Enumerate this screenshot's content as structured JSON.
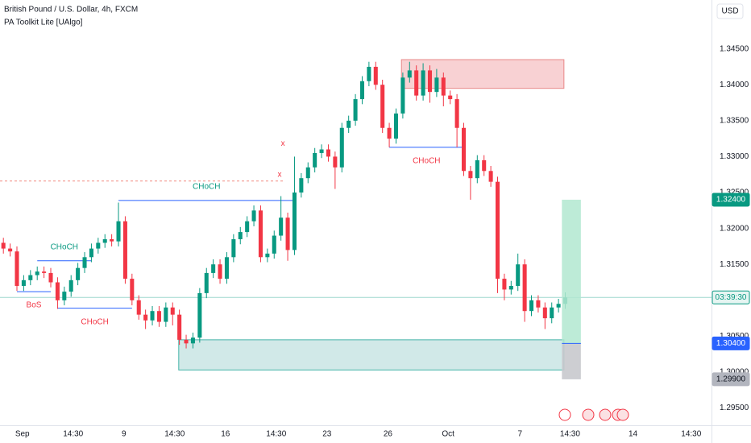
{
  "chart_data": {
    "type": "candlestick",
    "title": "British Pound / U.S. Dollar, 4h, FXCM",
    "indicator": "PA Toolkit Lite [UAlgo]",
    "currency": "USD",
    "up_color": "#089981",
    "down_color": "#f23645",
    "grid": false,
    "ylim": [
      1.2926,
      1.3518
    ],
    "yticks": [
      {
        "value": 1.295,
        "label": "1.29500"
      },
      {
        "value": 1.3,
        "label": "1.30000"
      },
      {
        "value": 1.305,
        "label": "1.30500"
      },
      {
        "value": 1.31,
        "label": "1.31000"
      },
      {
        "value": 1.315,
        "label": "1.31500"
      },
      {
        "value": 1.32,
        "label": "1.32000"
      },
      {
        "value": 1.325,
        "label": "1.32500"
      },
      {
        "value": 1.33,
        "label": "1.33000"
      },
      {
        "value": 1.335,
        "label": "1.33500"
      },
      {
        "value": 1.34,
        "label": "1.34000"
      },
      {
        "value": 1.345,
        "label": "1.34500"
      }
    ],
    "xlim": [
      -0.5,
      104.6
    ],
    "xticks": [
      {
        "value": 2.8,
        "label": "Sep"
      },
      {
        "value": 10.3,
        "label": "14:30"
      },
      {
        "value": 17.8,
        "label": "9"
      },
      {
        "value": 25.3,
        "label": "14:30"
      },
      {
        "value": 32.8,
        "label": "16"
      },
      {
        "value": 40.3,
        "label": "14:30"
      },
      {
        "value": 47.8,
        "label": "23"
      },
      {
        "value": 56.8,
        "label": "26"
      },
      {
        "value": 65.7,
        "label": "Oct"
      },
      {
        "value": 76.3,
        "label": "7"
      },
      {
        "value": 83.7,
        "label": "14:30"
      },
      {
        "value": 93,
        "label": "14"
      },
      {
        "value": 101.6,
        "label": "14:30"
      }
    ],
    "candles": {
      "open": [
        1.318,
        1.3172,
        1.3168,
        1.312,
        1.3128,
        1.3135,
        1.314,
        1.3138,
        1.3125,
        1.31,
        1.3112,
        1.3128,
        1.3145,
        1.316,
        1.3172,
        1.318,
        1.3185,
        1.3182,
        1.321,
        1.313,
        1.31,
        1.308,
        1.3072,
        1.3085,
        1.307,
        1.309,
        1.308,
        1.3045,
        1.304,
        1.3048,
        1.311,
        1.3138,
        1.315,
        1.313,
        1.316,
        1.3185,
        1.3195,
        1.321,
        1.3225,
        1.316,
        1.3165,
        1.319,
        1.3215,
        1.317,
        1.325,
        1.327,
        1.3285,
        1.3305,
        1.331,
        1.33,
        1.3285,
        1.334,
        1.335,
        1.338,
        1.3405,
        1.3425,
        1.34,
        1.334,
        1.3325,
        1.336,
        1.341,
        1.342,
        1.3385,
        1.342,
        1.339,
        1.341,
        1.3385,
        1.338,
        1.334,
        1.328,
        1.327,
        1.3295,
        1.328,
        1.3265,
        1.313,
        1.3115,
        1.312,
        1.315,
        1.3085,
        1.31,
        1.309,
        1.3075,
        1.309,
        1.3095
      ],
      "high": [
        1.3187,
        1.3179,
        1.3175,
        1.3135,
        1.3142,
        1.3147,
        1.3147,
        1.3145,
        1.3132,
        1.3119,
        1.3135,
        1.3152,
        1.3167,
        1.3179,
        1.3187,
        1.3192,
        1.3192,
        1.3236,
        1.3217,
        1.3137,
        1.3107,
        1.3087,
        1.3092,
        1.3092,
        1.3097,
        1.3097,
        1.3087,
        1.3052,
        1.3055,
        1.3117,
        1.3145,
        1.3157,
        1.3157,
        1.3167,
        1.3192,
        1.3202,
        1.3217,
        1.3232,
        1.3232,
        1.3172,
        1.3197,
        1.3245,
        1.3222,
        1.33,
        1.3277,
        1.3292,
        1.3312,
        1.3317,
        1.3317,
        1.3307,
        1.3347,
        1.3357,
        1.3387,
        1.3412,
        1.3432,
        1.3432,
        1.3407,
        1.3347,
        1.3367,
        1.3417,
        1.3432,
        1.3427,
        1.343,
        1.3427,
        1.3422,
        1.3417,
        1.3392,
        1.3387,
        1.3347,
        1.3287,
        1.3302,
        1.3302,
        1.3287,
        1.3272,
        1.3137,
        1.3127,
        1.3165,
        1.3157,
        1.3107,
        1.3107,
        1.3097,
        1.3097,
        1.3102,
        1.3111
      ],
      "low": [
        1.3165,
        1.3161,
        1.3113,
        1.3113,
        1.3121,
        1.3128,
        1.3131,
        1.3118,
        1.3088,
        1.3093,
        1.3105,
        1.3121,
        1.3138,
        1.3153,
        1.3165,
        1.3173,
        1.3175,
        1.3175,
        1.3123,
        1.3093,
        1.3073,
        1.306,
        1.3065,
        1.3063,
        1.3063,
        1.3065,
        1.3038,
        1.3033,
        1.3033,
        1.3041,
        1.3103,
        1.3131,
        1.3123,
        1.3123,
        1.3153,
        1.3178,
        1.3188,
        1.3203,
        1.3153,
        1.3153,
        1.3158,
        1.3183,
        1.3155,
        1.3163,
        1.3243,
        1.3263,
        1.3278,
        1.3298,
        1.3293,
        1.3255,
        1.3278,
        1.3333,
        1.3343,
        1.3373,
        1.3398,
        1.3393,
        1.3333,
        1.3313,
        1.3318,
        1.3353,
        1.3403,
        1.3378,
        1.3378,
        1.3375,
        1.3383,
        1.337,
        1.3373,
        1.3313,
        1.3273,
        1.324,
        1.3263,
        1.3273,
        1.3258,
        1.311,
        1.31,
        1.3108,
        1.3113,
        1.307,
        1.3078,
        1.3083,
        1.306,
        1.3068,
        1.3083,
        1.3088
      ],
      "close": [
        1.3172,
        1.3168,
        1.312,
        1.3128,
        1.3135,
        1.314,
        1.3138,
        1.3125,
        1.31,
        1.3112,
        1.3128,
        1.3145,
        1.316,
        1.3172,
        1.318,
        1.3185,
        1.3182,
        1.321,
        1.313,
        1.31,
        1.308,
        1.3072,
        1.3085,
        1.307,
        1.309,
        1.308,
        1.3045,
        1.304,
        1.3048,
        1.311,
        1.3138,
        1.315,
        1.313,
        1.316,
        1.3185,
        1.3195,
        1.321,
        1.3225,
        1.316,
        1.3165,
        1.319,
        1.3215,
        1.317,
        1.325,
        1.327,
        1.3285,
        1.3305,
        1.331,
        1.33,
        1.3285,
        1.334,
        1.335,
        1.338,
        1.3405,
        1.3425,
        1.34,
        1.334,
        1.3325,
        1.336,
        1.341,
        1.342,
        1.3385,
        1.342,
        1.339,
        1.341,
        1.3385,
        1.338,
        1.334,
        1.328,
        1.327,
        1.3295,
        1.328,
        1.3265,
        1.313,
        1.3115,
        1.312,
        1.315,
        1.3085,
        1.31,
        1.309,
        1.3075,
        1.309,
        1.3095,
        1.3104
      ]
    },
    "zones": [
      {
        "top": 1.3435,
        "bottom": 1.3395,
        "from": 58.8,
        "to": 82.8,
        "color": "#f7c9cc",
        "border": "#e57373"
      },
      {
        "top": 1.3045,
        "bottom": 1.3003,
        "from": 25.9,
        "to": 82.8,
        "color": "#c9e6e4",
        "border": "#26a69a"
      }
    ],
    "structures": [
      {
        "label": "BoS",
        "price": 1.3112,
        "from": 2,
        "to": 7,
        "label_color": "#f23645",
        "label_side": "below"
      },
      {
        "label": "CHoCH",
        "price": 1.3155,
        "from": 5,
        "to": 13,
        "label_color": "#089981",
        "label_side": "above"
      },
      {
        "label": "CHoCH",
        "price": 1.3089,
        "from": 8,
        "to": 19,
        "label_color": "#f23645",
        "label_side": "below"
      },
      {
        "label": "CHoCH",
        "price": 1.3239,
        "from": 17,
        "to": 43,
        "label_color": "#089981",
        "label_side": "above"
      },
      {
        "label": "CHoCH",
        "price": 1.3313,
        "from": 57,
        "to": 68,
        "label_color": "#f23645",
        "label_side": "below"
      }
    ],
    "dashed_level": {
      "price": 1.3266,
      "from": -0.5,
      "to": 41.5,
      "color": "#f28b82"
    },
    "sweep_marks": [
      {
        "text": "x",
        "index": 41.3,
        "price": 1.3318
      },
      {
        "text": "x",
        "index": 40.8,
        "price": 1.3275
      }
    ],
    "position": {
      "entry": 1.304,
      "target": 1.324,
      "stop": 1.299,
      "from": 82.5,
      "to": 85.3,
      "entry_label": "1.30400",
      "target_label": "1.32400",
      "stop_label": "1.29900"
    },
    "last_price": 1.3104,
    "countdown": "03:39:30"
  }
}
